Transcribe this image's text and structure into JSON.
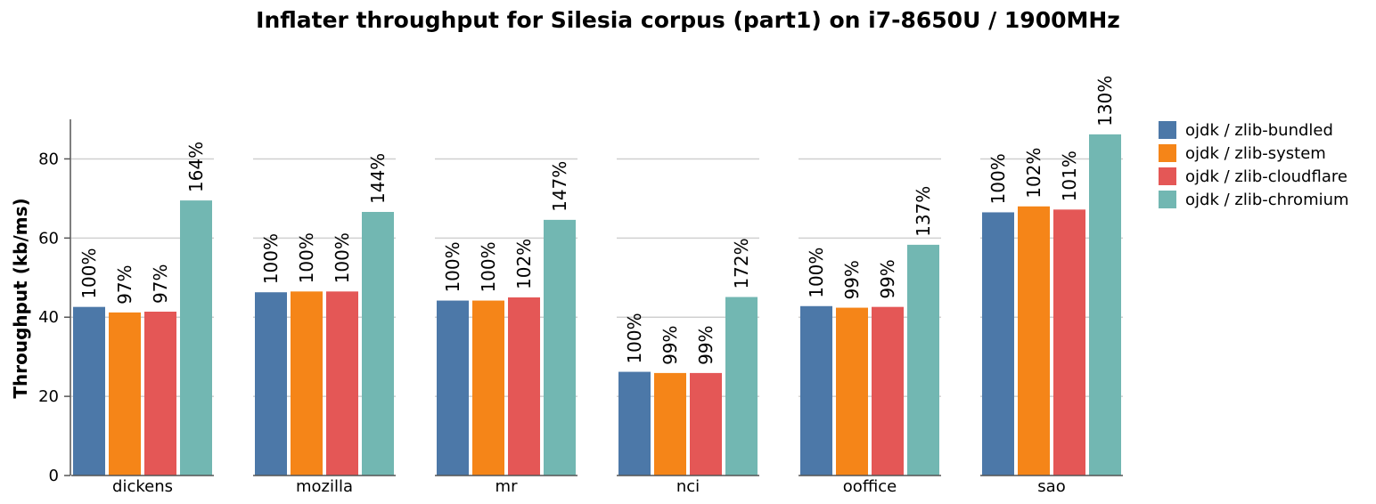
{
  "chart_data": {
    "type": "bar",
    "title": "Inflater throughput for Silesia corpus (part1) on i7-8650U / 1900MHz",
    "ylabel": "Throughput (kb/ms)",
    "xlabel": "",
    "ylim": [
      0,
      90
    ],
    "yticks": [
      0,
      20,
      40,
      60,
      80
    ],
    "grid": true,
    "legend_position": "right",
    "categories": [
      "dickens",
      "mozilla",
      "mr",
      "nci",
      "ooffice",
      "sao"
    ],
    "series": [
      {
        "name": "ojdk / zlib-bundled",
        "color": "#4c78a8",
        "values": [
          42.6,
          46.3,
          44.2,
          26.2,
          42.8,
          66.5
        ],
        "labels": [
          "100%",
          "100%",
          "100%",
          "100%",
          "100%",
          "100%"
        ]
      },
      {
        "name": "ojdk / zlib-system",
        "color": "#f58518",
        "values": [
          41.2,
          46.5,
          44.2,
          25.9,
          42.4,
          68.0
        ],
        "labels": [
          "97%",
          "100%",
          "100%",
          "99%",
          "99%",
          "102%"
        ]
      },
      {
        "name": "ojdk / zlib-cloudflare",
        "color": "#e45756",
        "values": [
          41.4,
          46.5,
          45.0,
          25.9,
          42.6,
          67.2
        ],
        "labels": [
          "97%",
          "100%",
          "102%",
          "99%",
          "99%",
          "101%"
        ]
      },
      {
        "name": "ojdk / zlib-chromium",
        "color": "#72b7b2",
        "values": [
          69.5,
          66.6,
          64.6,
          45.1,
          58.3,
          86.2
        ],
        "labels": [
          "164%",
          "144%",
          "147%",
          "172%",
          "137%",
          "130%"
        ]
      }
    ]
  }
}
